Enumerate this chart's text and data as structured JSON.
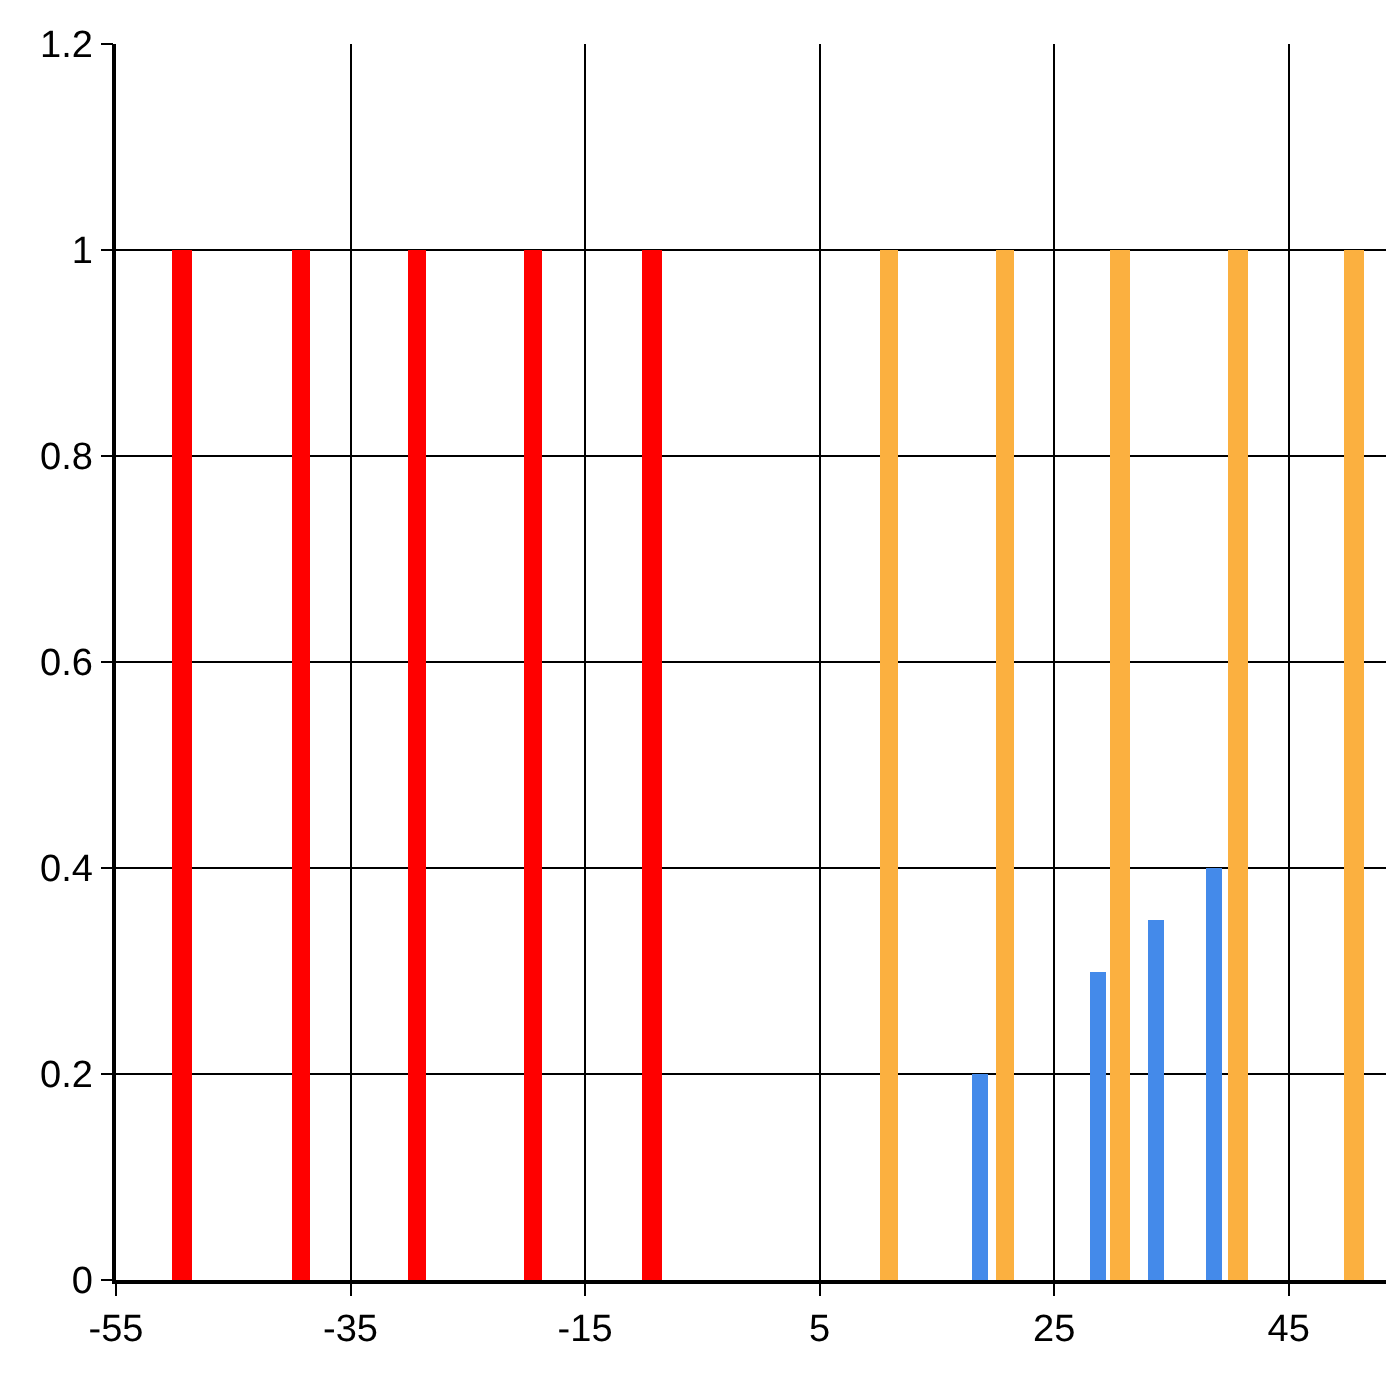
{
  "chart_data": {
    "type": "bar",
    "xlim": [
      -55,
      53.3
    ],
    "xticks": [
      -55,
      -35,
      -15,
      5,
      25,
      45
    ],
    "ylim": [
      0,
      1.2
    ],
    "yticks": [
      0,
      0.2,
      0.4,
      0.6,
      0.8,
      1,
      1.2
    ],
    "grid": true,
    "series": [
      {
        "color": "#ff0000",
        "x": [
          -49.4,
          -39.2,
          -29.3,
          -19.4,
          -9.3
        ],
        "values": [
          1,
          1,
          1,
          1,
          1
        ]
      },
      {
        "color": "#fbb040",
        "x": [
          10.9,
          20.8,
          30.6,
          40.7,
          50.6
        ],
        "values": [
          1,
          1,
          1,
          1,
          1
        ]
      },
      {
        "color": "#448aea",
        "x": [
          18.7,
          28.7,
          33.7,
          38.6
        ],
        "values": [
          0.2,
          0.3,
          0.35,
          0.4
        ]
      }
    ]
  }
}
